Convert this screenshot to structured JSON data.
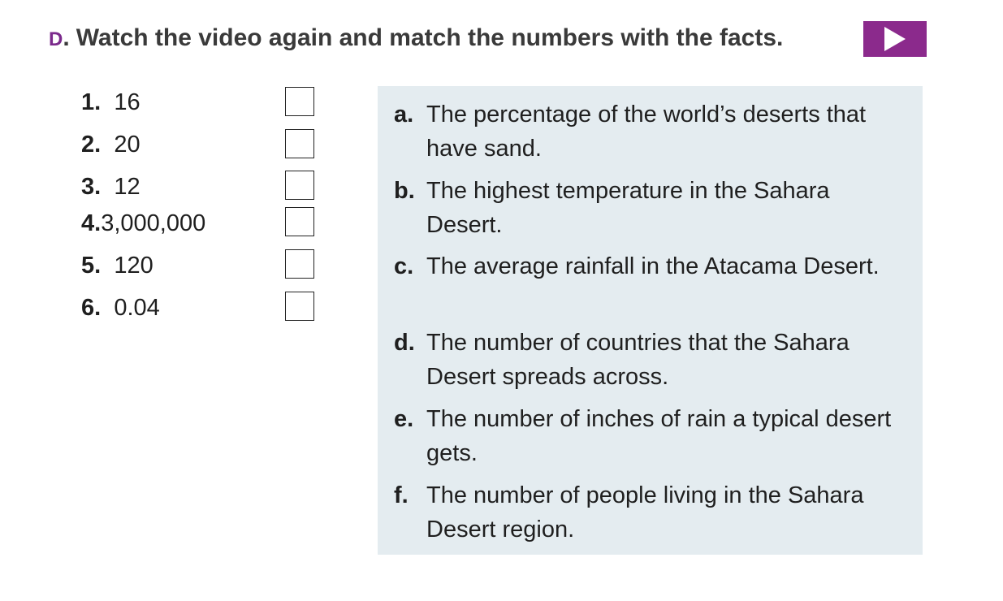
{
  "header": {
    "letter": "D",
    "dot": ".",
    "instruction": "Watch the video again and match the numbers with the facts."
  },
  "play_button": {
    "icon": "play-icon",
    "color": "#8b2a8c"
  },
  "numbers": [
    {
      "index": "1.",
      "value": "16"
    },
    {
      "index": "2.",
      "value": "20"
    },
    {
      "index": "3.",
      "value": "12"
    },
    {
      "index": "4.",
      "value": "3,000,000"
    },
    {
      "index": "5.",
      "value": "120"
    },
    {
      "index": "6.",
      "value": "0.04"
    }
  ],
  "facts": [
    {
      "letter": "a.",
      "text": "The percentage of the world’s deserts that have sand."
    },
    {
      "letter": "b.",
      "text": "The highest temperature in the Sahara Desert."
    },
    {
      "letter": "c.",
      "text": "The average rainfall in the Atacama Desert."
    },
    {
      "letter": "d.",
      "text": "The number of countries that the Sahara Desert spreads across."
    },
    {
      "letter": "e.",
      "text": "The number of inches of rain a typical desert gets."
    },
    {
      "letter": "f.",
      "text": "The number of people living in the Sahara Desert region."
    }
  ],
  "colors": {
    "accent": "#7b2a8c",
    "panel": "#e4ecf0"
  }
}
